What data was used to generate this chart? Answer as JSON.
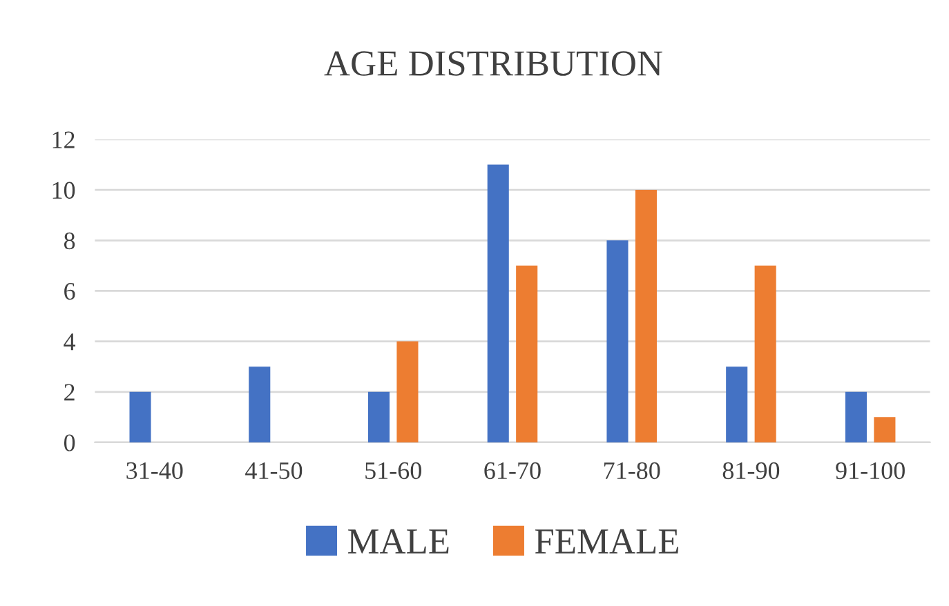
{
  "chart_data": {
    "type": "bar",
    "title": "AGE DISTRIBUTION",
    "categories": [
      "31-40",
      "41-50",
      "51-60",
      "61-70",
      "71-80",
      "81-90",
      "91-100"
    ],
    "series": [
      {
        "name": "MALE",
        "color": "#4472c4",
        "values": [
          2,
          3,
          2,
          11,
          8,
          3,
          2
        ]
      },
      {
        "name": "FEMALE",
        "color": "#ed7d31",
        "values": [
          0,
          0,
          4,
          7,
          10,
          7,
          1
        ]
      }
    ],
    "ylim": [
      0,
      12
    ],
    "yticks": [
      0,
      2,
      4,
      6,
      8,
      10,
      12
    ],
    "grid": "y",
    "legend": "bottom"
  }
}
